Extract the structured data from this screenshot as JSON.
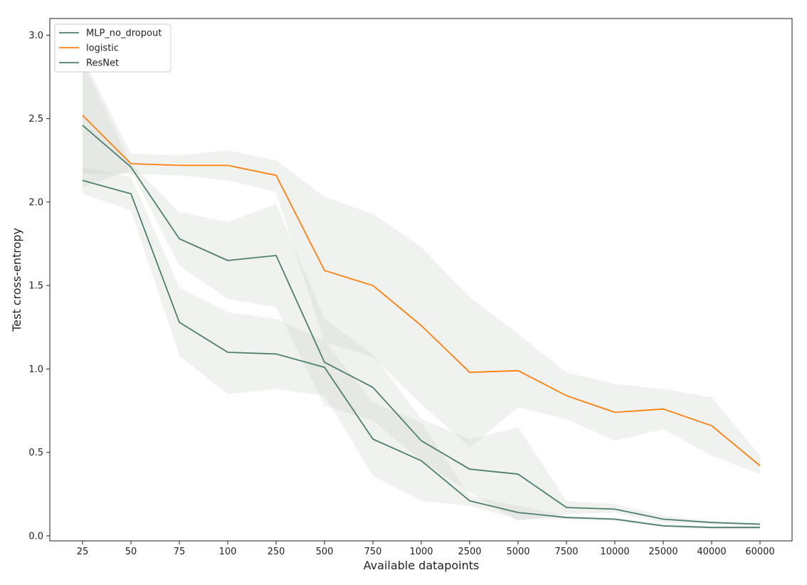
{
  "chart_data": {
    "type": "line",
    "title": "",
    "xlabel": "Available datapoints",
    "ylabel": "Test cross-entropy",
    "categories": [
      "25",
      "50",
      "75",
      "100",
      "250",
      "500",
      "750",
      "1000",
      "2500",
      "5000",
      "7500",
      "10000",
      "25000",
      "40000",
      "60000"
    ],
    "yticks": [
      "0.0",
      "0.5",
      "1.0",
      "1.5",
      "2.0",
      "2.5",
      "3.0"
    ],
    "ylim": [
      -0.03,
      3.1
    ],
    "legend_position": "top-left",
    "series": [
      {
        "name": "MLP_no_dropout",
        "color": "#4e7f6e",
        "values": [
          2.46,
          2.21,
          1.78,
          1.65,
          1.68,
          1.04,
          0.89,
          0.57,
          0.4,
          0.37,
          0.17,
          0.16,
          0.1,
          0.08,
          0.07
        ],
        "lower": [
          2.09,
          2.19,
          1.62,
          1.42,
          1.37,
          0.78,
          0.69,
          0.45,
          0.26,
          0.09,
          0.13,
          0.14,
          0.08,
          0.07,
          0.06
        ],
        "upper": [
          2.84,
          2.23,
          1.94,
          1.88,
          1.99,
          1.3,
          1.09,
          0.7,
          0.58,
          0.65,
          0.21,
          0.19,
          0.12,
          0.09,
          0.08
        ]
      },
      {
        "name": "logistic",
        "color": "#ff7f0e",
        "values": [
          2.52,
          2.23,
          2.22,
          2.22,
          2.16,
          1.59,
          1.5,
          1.26,
          0.98,
          0.99,
          0.84,
          0.74,
          0.76,
          0.66,
          0.42
        ],
        "lower": [
          2.17,
          2.17,
          2.16,
          2.13,
          2.06,
          1.16,
          1.07,
          0.79,
          0.53,
          0.77,
          0.7,
          0.57,
          0.64,
          0.48,
          0.37
        ],
        "upper": [
          2.87,
          2.29,
          2.28,
          2.31,
          2.25,
          2.03,
          1.93,
          1.73,
          1.43,
          1.21,
          0.98,
          0.91,
          0.88,
          0.83,
          0.48
        ]
      },
      {
        "name": "ResNet",
        "color": "#4e7f6e",
        "values": [
          2.13,
          2.05,
          1.28,
          1.1,
          1.09,
          1.01,
          0.58,
          0.45,
          0.21,
          0.14,
          0.11,
          0.1,
          0.06,
          0.05,
          0.05
        ],
        "lower": [
          2.05,
          1.95,
          1.08,
          0.85,
          0.88,
          0.84,
          0.36,
          0.21,
          0.18,
          0.1,
          0.1,
          0.09,
          0.05,
          0.04,
          0.04
        ],
        "upper": [
          2.21,
          2.15,
          1.49,
          1.34,
          1.3,
          1.17,
          0.8,
          0.68,
          0.24,
          0.18,
          0.12,
          0.11,
          0.07,
          0.06,
          0.06
        ]
      }
    ]
  }
}
